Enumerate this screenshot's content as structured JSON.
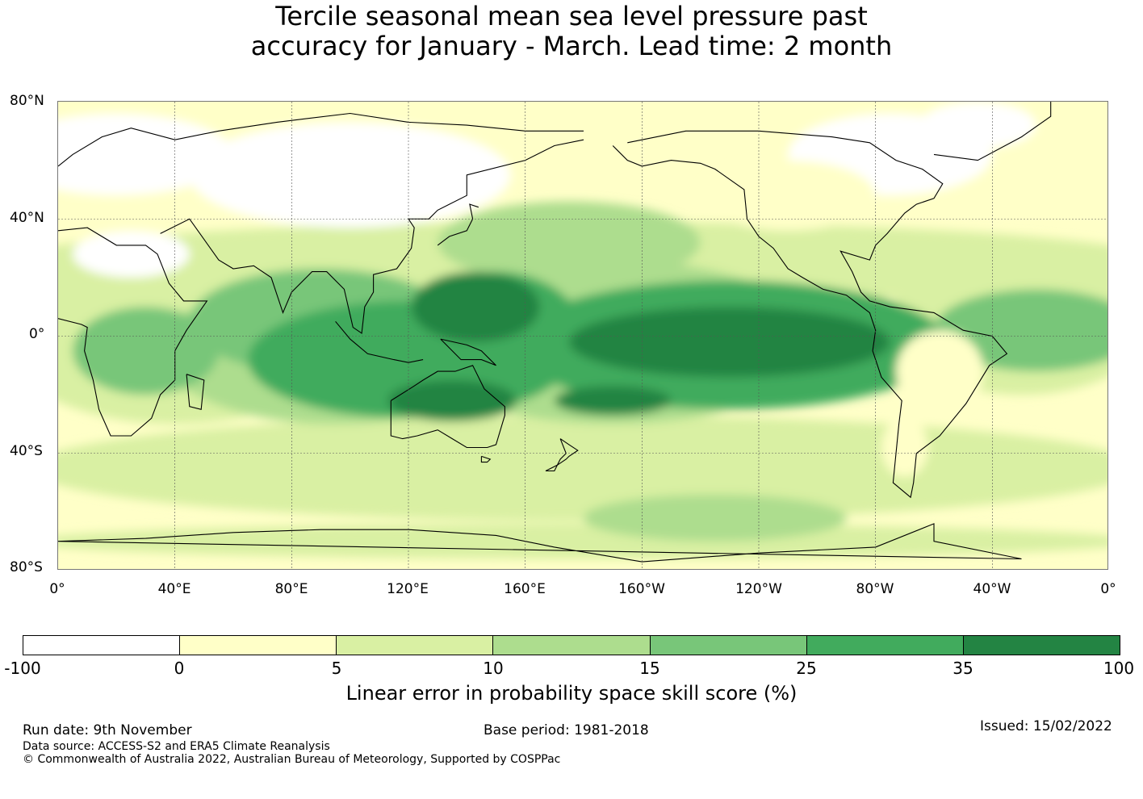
{
  "title": {
    "line1": "Tercile seasonal mean sea level pressure past",
    "line2": "accuracy for January - March. Lead time: 2 month"
  },
  "map": {
    "lat_labels": [
      "80°N",
      "40°N",
      "0°",
      "40°S",
      "80°S"
    ],
    "lon_labels": [
      "0°",
      "40°E",
      "80°E",
      "120°E",
      "160°E",
      "160°W",
      "120°W",
      "80°W",
      "40°W",
      "0°"
    ],
    "lat_range": [
      -80,
      80
    ],
    "lon_range": [
      0,
      360
    ],
    "gridlines": true
  },
  "colorbar": {
    "ticks": [
      "-100",
      "0",
      "5",
      "10",
      "15",
      "25",
      "35",
      "100"
    ],
    "colors": [
      "#ffffff",
      "#ffffc8",
      "#d9f0a3",
      "#addd8e",
      "#78c679",
      "#41ab5d",
      "#238443"
    ],
    "label": "Linear error in probability space skill score (%)"
  },
  "footer": {
    "run_date": "Run date: 9th November",
    "base_period": "Base period: 1981-2018",
    "issued": "Issued: 15/02/2022",
    "data_source": "Data source: ACCESS-S2 and ERA5 Climate Reanalysis",
    "copyright": "© Commonwealth of Australia 2022, Australian Bureau of Meteorology, Supported by COSPPac"
  }
}
